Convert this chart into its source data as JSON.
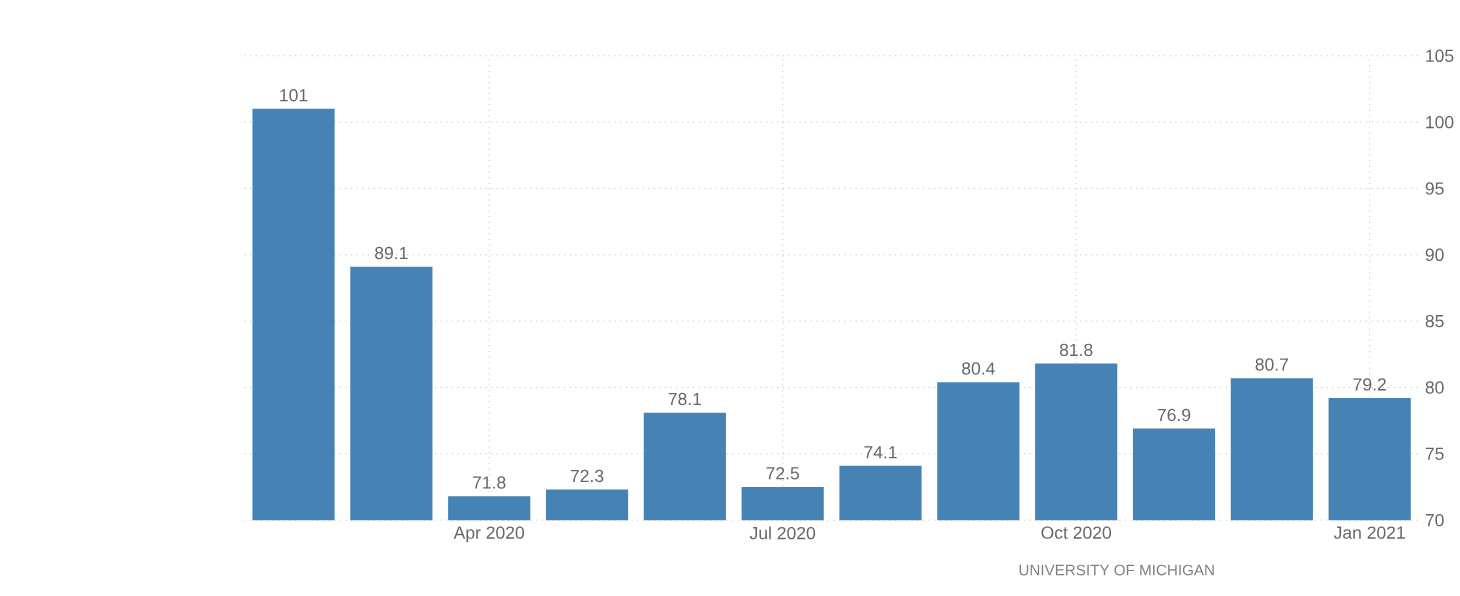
{
  "chart_data": {
    "type": "bar",
    "categories": [
      null,
      null,
      "Apr 2020",
      null,
      null,
      "Jul 2020",
      null,
      null,
      "Oct 2020",
      null,
      null,
      "Jan 2021"
    ],
    "values": [
      101,
      89.1,
      71.8,
      72.3,
      78.1,
      72.5,
      74.1,
      80.4,
      81.8,
      76.9,
      80.7,
      79.2
    ],
    "color": "#4682b4",
    "ylim": [
      70,
      105
    ],
    "yticks": [
      70,
      75,
      80,
      85,
      90,
      95,
      100,
      105
    ],
    "grid": true,
    "data_labels": true,
    "annotations": [
      "UNIVERSITY OF MICHIGAN"
    ]
  }
}
